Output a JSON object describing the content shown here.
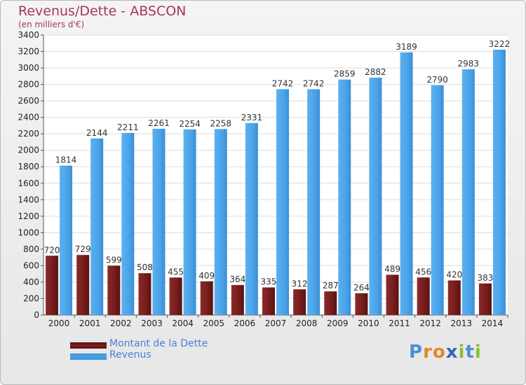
{
  "chart_data": {
    "type": "bar",
    "title": "Revenus/Dette - ABSCON",
    "subtitle": "(en milliers d'€)",
    "categories": [
      "2000",
      "2001",
      "2002",
      "2003",
      "2004",
      "2005",
      "2006",
      "2007",
      "2008",
      "2009",
      "2010",
      "2011",
      "2012",
      "2013",
      "2014"
    ],
    "series": [
      {
        "name": "Montant de la Dette",
        "color": "#7a1f1f",
        "values": [
          720,
          729,
          599,
          508,
          455,
          409,
          364,
          335,
          312,
          287,
          264,
          489,
          456,
          420,
          383
        ]
      },
      {
        "name": "Revenus",
        "color": "#4aa3e8",
        "values": [
          1814,
          2144,
          2211,
          2261,
          2254,
          2258,
          2331,
          2742,
          2742,
          2859,
          2882,
          3189,
          2790,
          2983,
          3222
        ]
      }
    ],
    "ylim": [
      0,
      3400
    ],
    "yticks": [
      0,
      200,
      400,
      600,
      800,
      1000,
      1200,
      1400,
      1600,
      1800,
      2000,
      2200,
      2400,
      2600,
      2800,
      3000,
      3200,
      3400
    ],
    "xlabel": "",
    "ylabel": "",
    "grid": true,
    "legend": "bottom-left"
  },
  "logo": {
    "letters": [
      {
        "ch": "P",
        "color": "#4a8fd8"
      },
      {
        "ch": "r",
        "color": "#e0892a"
      },
      {
        "ch": "o",
        "color": "#e0892a"
      },
      {
        "ch": "x",
        "color": "#2f67b8"
      },
      {
        "ch": "i",
        "color": "#8bbf2f"
      },
      {
        "ch": "t",
        "color": "#4a8fd8"
      },
      {
        "ch": "i",
        "color": "#8bbf2f"
      }
    ]
  }
}
